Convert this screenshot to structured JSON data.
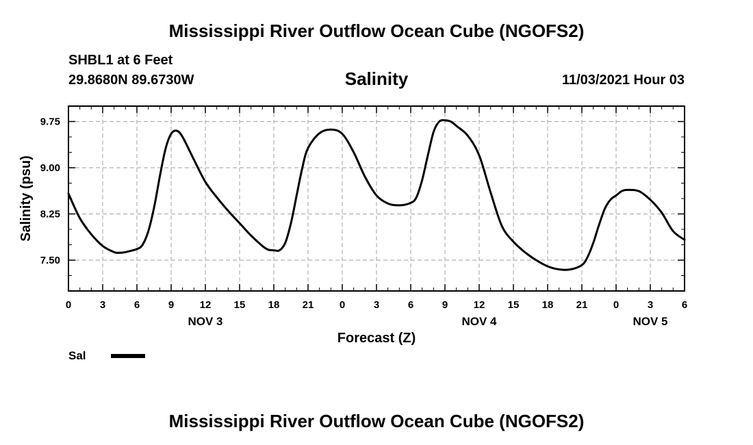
{
  "header": {
    "title": "Mississippi River Outflow Ocean Cube (NGOFS2)",
    "station": "SHBL1 at 6 Feet",
    "coords": "29.8680N  89.6730W",
    "variable": "Salinity",
    "datetime": "11/03/2021 Hour 03"
  },
  "footer": {
    "title": "Mississippi River Outflow Ocean Cube (NGOFS2)"
  },
  "chart_data": {
    "type": "line",
    "xlabel": "Forecast (Z)",
    "ylabel": "Salinity (psu)",
    "xlim": [
      0,
      54
    ],
    "ylim": [
      7.0,
      10.0
    ],
    "x_ticks": [
      0,
      3,
      6,
      9,
      12,
      15,
      18,
      21,
      24,
      27,
      30,
      33,
      36,
      39,
      42,
      45,
      48,
      51,
      54
    ],
    "x_tick_labels": [
      "0",
      "3",
      "6",
      "9",
      "12",
      "15",
      "18",
      "21",
      "0",
      "3",
      "6",
      "9",
      "12",
      "15",
      "18",
      "21",
      "0",
      "3",
      "6"
    ],
    "day_labels": [
      {
        "x": 12,
        "label": "NOV 3"
      },
      {
        "x": 36,
        "label": "NOV 4"
      },
      {
        "x": 51,
        "label": "NOV 5"
      }
    ],
    "y_ticks": [
      7.5,
      8.25,
      9.0,
      9.75
    ],
    "y_tick_labels": [
      "7.50",
      "8.25",
      "9.00",
      "9.75"
    ],
    "grid": true,
    "legend": {
      "position": "bottom-left",
      "label": "Sal"
    },
    "series": [
      {
        "name": "Sal",
        "color": "#000000",
        "x": [
          0,
          1,
          2,
          3,
          4,
          4.5,
          5,
          6,
          6.5,
          7,
          7.5,
          8,
          8.5,
          9,
          9.5,
          10,
          11,
          12,
          13,
          14,
          15,
          16,
          17,
          17.5,
          18,
          18.5,
          19,
          19.5,
          20,
          20.5,
          21,
          22,
          23,
          24,
          25,
          26,
          27,
          28,
          29,
          30,
          30.5,
          31,
          31.5,
          32,
          32.5,
          33,
          33.5,
          34,
          35,
          36,
          37,
          38,
          39,
          40,
          41,
          42,
          43,
          44,
          45,
          45.5,
          46,
          46.5,
          47,
          47.5,
          48,
          48.5,
          49,
          50,
          51,
          52,
          53,
          54
        ],
        "y": [
          8.58,
          8.18,
          7.92,
          7.73,
          7.63,
          7.62,
          7.63,
          7.68,
          7.75,
          7.97,
          8.35,
          8.85,
          9.3,
          9.55,
          9.6,
          9.5,
          9.13,
          8.77,
          8.52,
          8.3,
          8.1,
          7.9,
          7.73,
          7.67,
          7.66,
          7.66,
          7.78,
          8.1,
          8.55,
          9.0,
          9.32,
          9.56,
          9.62,
          9.55,
          9.25,
          8.85,
          8.55,
          8.42,
          8.39,
          8.43,
          8.52,
          8.8,
          9.2,
          9.58,
          9.75,
          9.77,
          9.75,
          9.68,
          9.52,
          9.2,
          8.6,
          8.05,
          7.8,
          7.63,
          7.5,
          7.4,
          7.35,
          7.35,
          7.42,
          7.55,
          7.78,
          8.07,
          8.33,
          8.48,
          8.55,
          8.62,
          8.64,
          8.62,
          8.48,
          8.27,
          7.97,
          7.83
        ]
      }
    ]
  }
}
